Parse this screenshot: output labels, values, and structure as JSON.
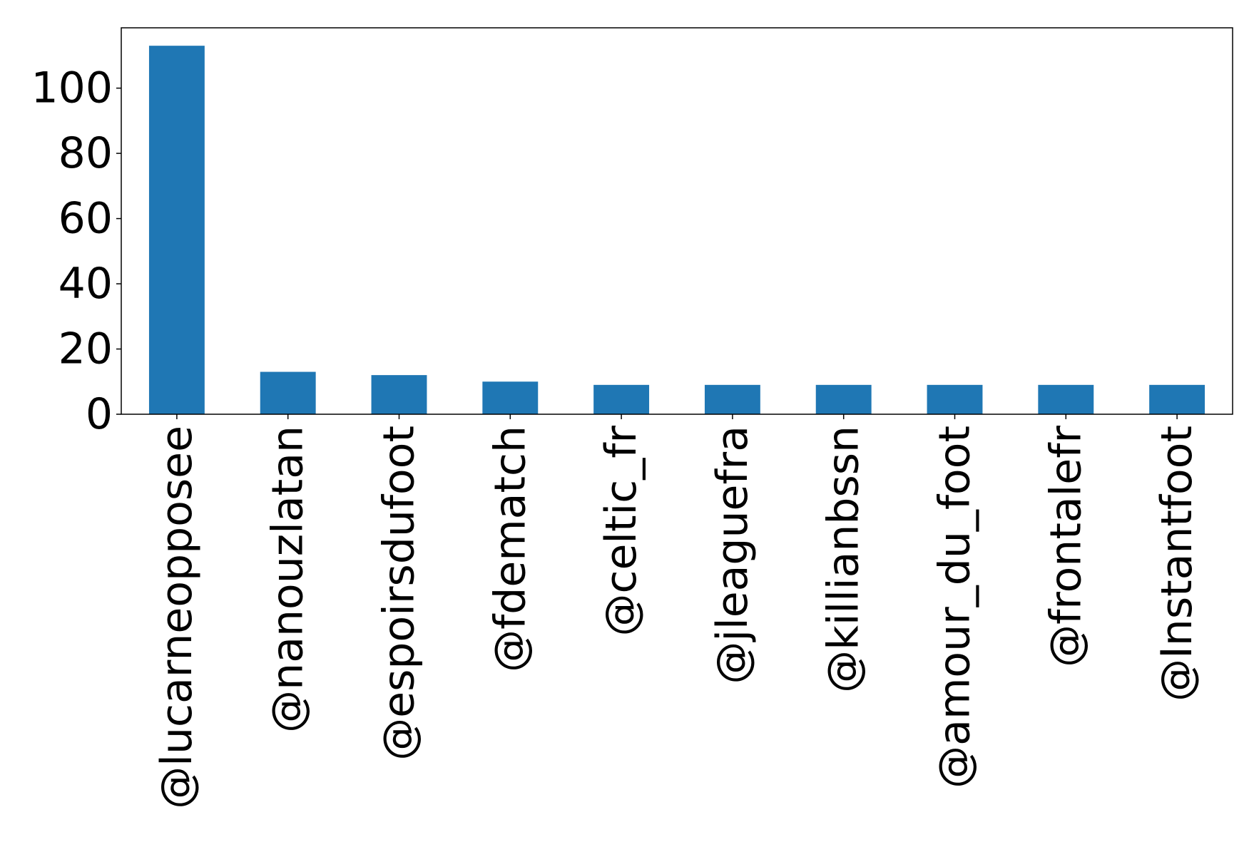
{
  "chart_data": {
    "type": "bar",
    "title": "",
    "xlabel": "",
    "ylabel": "",
    "categories": [
      "@lucarneopposee",
      "@nanouzlatan",
      "@espoirsdufoot",
      "@fdematch",
      "@celtic_fr",
      "@jleaguefra",
      "@killianbssn",
      "@amour_du_foot",
      "@frontalefr",
      "@Instantfoot"
    ],
    "values": [
      113,
      13,
      12,
      10,
      9,
      9,
      9,
      9,
      9,
      9
    ],
    "ylim": [
      0,
      118.5
    ],
    "yticks": [
      "0",
      "20",
      "40",
      "60",
      "80",
      "100"
    ],
    "grid": false,
    "bar_color": "#1f77b4"
  }
}
